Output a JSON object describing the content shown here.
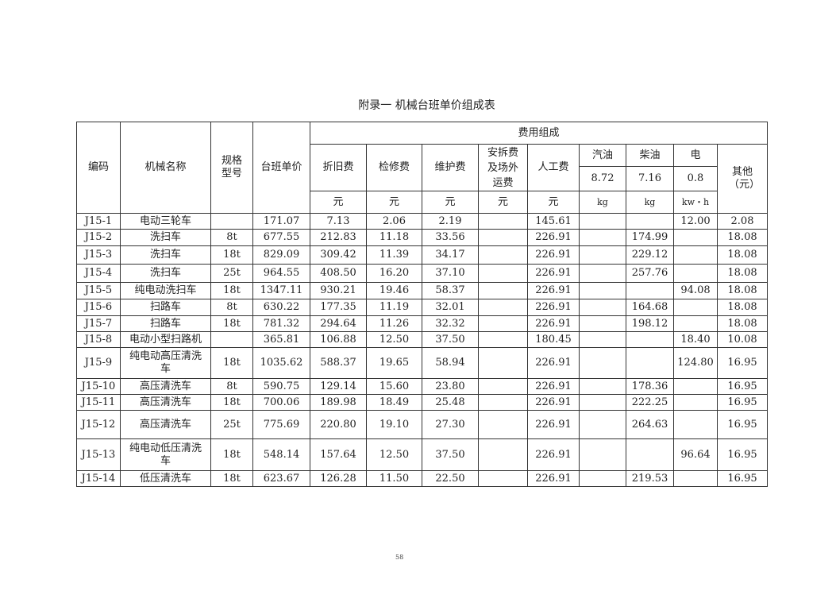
{
  "title": "附录一  机械台班单价组成表",
  "header": {
    "code": "编码",
    "name": "机械名称",
    "spec": "规格型号",
    "price": "台班单价",
    "cost_group": "费用组成",
    "depreciation": "折旧费",
    "overhaul": "检修费",
    "maintenance": "维护费",
    "install": "安拆费及场外运费",
    "labor": "人工费",
    "gasoline": "汽油",
    "diesel": "柴油",
    "electricity": "电",
    "other": "其他（元）",
    "gasoline_price": "8.72",
    "diesel_price": "7.16",
    "electricity_price": "0.8",
    "unit_yuan": "元",
    "unit_kg": "kg",
    "unit_kwh": "kw・h"
  },
  "rows": [
    [
      "J15-1",
      "电动三轮车",
      "",
      "171.07",
      "7.13",
      "2.06",
      "2.19",
      "",
      "145.61",
      "",
      "",
      "12.00",
      "2.08"
    ],
    [
      "J15-2",
      "洗扫车",
      "8t",
      "677.55",
      "212.83",
      "11.18",
      "33.56",
      "",
      "226.91",
      "",
      "174.99",
      "",
      "18.08"
    ],
    [
      "J15-3",
      "洗扫车",
      "18t",
      "829.09",
      "309.42",
      "11.39",
      "34.17",
      "",
      "226.91",
      "",
      "229.12",
      "",
      "18.08"
    ],
    [
      "J15-4",
      "洗扫车",
      "25t",
      "964.55",
      "408.50",
      "16.20",
      "37.10",
      "",
      "226.91",
      "",
      "257.76",
      "",
      "18.08"
    ],
    [
      "J15-5",
      "纯电动洗扫车",
      "18t",
      "1347.11",
      "930.21",
      "19.46",
      "58.37",
      "",
      "226.91",
      "",
      "",
      "94.08",
      "18.08"
    ],
    [
      "J15-6",
      "扫路车",
      "8t",
      "630.22",
      "177.35",
      "11.19",
      "32.01",
      "",
      "226.91",
      "",
      "164.68",
      "",
      "18.08"
    ],
    [
      "J15-7",
      "扫路车",
      "18t",
      "781.32",
      "294.64",
      "11.26",
      "32.32",
      "",
      "226.91",
      "",
      "198.12",
      "",
      "18.08"
    ],
    [
      "J15-8",
      "电动小型扫路机",
      "",
      "365.81",
      "106.88",
      "12.50",
      "37.50",
      "",
      "180.45",
      "",
      "",
      "18.40",
      "10.08"
    ],
    [
      "J15-9",
      "纯电动高压清洗车",
      "18t",
      "1035.62",
      "588.37",
      "19.65",
      "58.94",
      "",
      "226.91",
      "",
      "",
      "124.80",
      "16.95"
    ],
    [
      "J15-10",
      "高压清洗车",
      "8t",
      "590.75",
      "129.14",
      "15.60",
      "23.80",
      "",
      "226.91",
      "",
      "178.36",
      "",
      "16.95"
    ],
    [
      "J15-11",
      "高压清洗车",
      "18t",
      "700.06",
      "189.98",
      "18.49",
      "25.48",
      "",
      "226.91",
      "",
      "222.25",
      "",
      "16.95"
    ],
    [
      "J15-12",
      "高压清洗车",
      "25t",
      "775.69",
      "220.80",
      "19.10",
      "27.30",
      "",
      "226.91",
      "",
      "264.63",
      "",
      "16.95"
    ],
    [
      "J15-13",
      "纯电动低压清洗车",
      "18t",
      "548.14",
      "157.64",
      "12.50",
      "37.50",
      "",
      "226.91",
      "",
      "",
      "96.64",
      "16.95"
    ],
    [
      "J15-14",
      "低压清洗车",
      "18t",
      "623.67",
      "126.28",
      "11.50",
      "22.50",
      "",
      "226.91",
      "",
      "219.53",
      "",
      "16.95"
    ]
  ],
  "page_number": "58"
}
